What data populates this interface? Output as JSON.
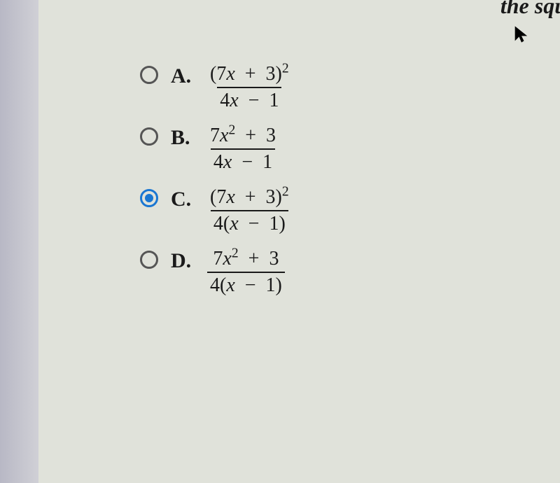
{
  "header": {
    "truncated_text": "the squ"
  },
  "options": [
    {
      "letter": "A.",
      "selected": false,
      "numerator_html": "(7<span class='xvar'>x</span> &nbsp;+&nbsp; 3)<span class='sup'>2</span>",
      "denominator_html": "4<span class='xvar'>x</span> &nbsp;&minus;&nbsp; 1"
    },
    {
      "letter": "B.",
      "selected": false,
      "numerator_html": "7<span class='xvar'>x</span><span class='sup'>2</span> &nbsp;+&nbsp; 3",
      "denominator_html": "4<span class='xvar'>x</span> &nbsp;&minus;&nbsp; 1"
    },
    {
      "letter": "C.",
      "selected": true,
      "numerator_html": "(7<span class='xvar'>x</span> &nbsp;+&nbsp; 3)<span class='sup'>2</span>",
      "denominator_html": "4(<span class='xvar'>x</span> &nbsp;&minus;&nbsp; 1)"
    },
    {
      "letter": "D.",
      "selected": false,
      "numerator_html": "7<span class='xvar'>x</span><span class='sup'>2</span> &nbsp;+&nbsp; 3",
      "denominator_html": "4(<span class='xvar'>x</span> &nbsp;&minus;&nbsp; 1)"
    }
  ]
}
